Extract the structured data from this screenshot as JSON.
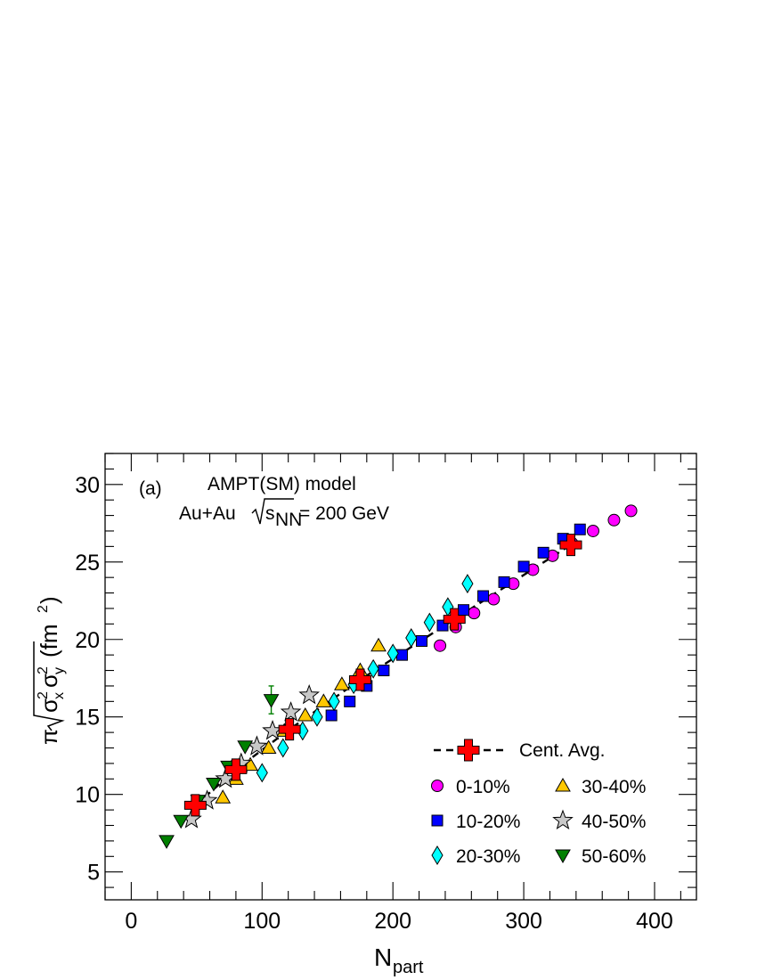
{
  "chart_data": {
    "type": "scatter",
    "title": "",
    "xlim": [
      -20,
      432
    ],
    "ylim": [
      3.2,
      32
    ],
    "x_ticks": [
      0,
      100,
      200,
      300,
      400
    ],
    "y_ticks": [
      5,
      10,
      15,
      20,
      25,
      30
    ],
    "xlabel": {
      "main": "N",
      "sub": "part"
    },
    "ylabel": {
      "pre": "π",
      "main": "σ",
      "x": "x",
      "y": "y",
      "sup": "2",
      "unit": "(fm",
      "unit_sup": "2",
      "unit_close": ")"
    },
    "annotations": {
      "panel": "(a)",
      "model": "AMPT(SM) model",
      "system": "Au+Au",
      "energy_sym": "s",
      "energy_sub": "NN",
      "energy_val": "= 200 GeV"
    },
    "legend_position": "bottom-right",
    "series": [
      {
        "name": "0-10%",
        "marker": "circle",
        "color": "#ff00ff",
        "points": [
          [
            236,
            19.6
          ],
          [
            248,
            20.8
          ],
          [
            262,
            21.7
          ],
          [
            277,
            22.6
          ],
          [
            292,
            23.6
          ],
          [
            307,
            24.5
          ],
          [
            322,
            25.4
          ],
          [
            337,
            26.2
          ],
          [
            353,
            27.0
          ],
          [
            369,
            27.7
          ],
          [
            382,
            28.3
          ]
        ]
      },
      {
        "name": "10-20%",
        "marker": "square",
        "color": "#0000ff",
        "points": [
          [
            153,
            15.1
          ],
          [
            167,
            16.0
          ],
          [
            180,
            17.0
          ],
          [
            193,
            18.0
          ],
          [
            207,
            19.0
          ],
          [
            222,
            19.9
          ],
          [
            238,
            20.9
          ],
          [
            254,
            21.9
          ],
          [
            269,
            22.8
          ],
          [
            285,
            23.7
          ],
          [
            300,
            24.7
          ],
          [
            315,
            25.6
          ],
          [
            330,
            26.5
          ],
          [
            343,
            27.1
          ]
        ]
      },
      {
        "name": "20-30%",
        "marker": "diamond",
        "color": "#00ffff",
        "points": [
          [
            100,
            11.4
          ],
          [
            116,
            13.0
          ],
          [
            131,
            14.1
          ],
          [
            142,
            15.0
          ],
          [
            155,
            16.0
          ],
          [
            170,
            17.1
          ],
          [
            185,
            18.1
          ],
          [
            200,
            19.1
          ],
          [
            214,
            20.1
          ],
          [
            228,
            21.1
          ],
          [
            242,
            22.1
          ],
          [
            257,
            23.6
          ]
        ]
      },
      {
        "name": "30-40%",
        "marker": "triangle-up",
        "color": "#ffc800",
        "points": [
          [
            70,
            9.8
          ],
          [
            80,
            11.0
          ],
          [
            91,
            11.9
          ],
          [
            105,
            13.0
          ],
          [
            117,
            14.1
          ],
          [
            133,
            15.1
          ],
          [
            147,
            16.0
          ],
          [
            161,
            17.1
          ],
          [
            175,
            18.0
          ],
          [
            189,
            19.6
          ]
        ]
      },
      {
        "name": "40-50%",
        "marker": "star",
        "color": "#c8c8c8",
        "points": [
          [
            46,
            8.4
          ],
          [
            58,
            9.6
          ],
          [
            72,
            11.0
          ],
          [
            84,
            12.0
          ],
          [
            96,
            13.1
          ],
          [
            108,
            14.1
          ],
          [
            122,
            15.3
          ],
          [
            136,
            16.4
          ]
        ]
      },
      {
        "name": "50-60%",
        "marker": "triangle-down",
        "color": "#008000",
        "points": [
          [
            27,
            7.0
          ],
          [
            38,
            8.3
          ],
          [
            51,
            9.6
          ],
          [
            63,
            10.7
          ],
          [
            74,
            11.8
          ],
          [
            87,
            13.1
          ],
          [
            107,
            16.1
          ]
        ]
      }
    ],
    "error_bars": [
      {
        "x": 107,
        "low": 15.2,
        "high": 17.0,
        "color": "#008000"
      }
    ],
    "average": {
      "name": "Cent. Avg.",
      "marker": "cross",
      "color": "#ff0000",
      "points": [
        [
          49,
          9.3
        ],
        [
          80,
          11.6
        ],
        [
          121,
          14.2
        ],
        [
          175,
          17.4
        ],
        [
          247,
          21.3
        ],
        [
          336,
          26.1
        ]
      ]
    }
  }
}
